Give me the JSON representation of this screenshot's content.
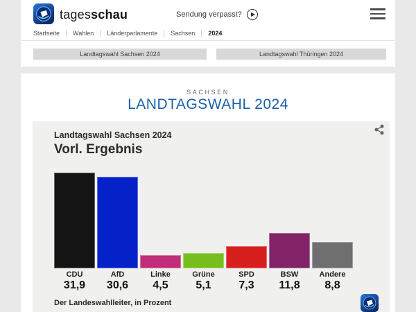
{
  "header": {
    "brand_regular": "tages",
    "brand_bold": "schau",
    "watch_label": "Sendung verpasst?"
  },
  "breadcrumb": {
    "items": [
      "Startseite",
      "Wahlen",
      "Länderparlamente",
      "Sachsen",
      "2024"
    ]
  },
  "tabs": {
    "sachsen": "Landtagswahl Sachsen 2024",
    "thueringen": "Landtagswahl Thüringen 2024"
  },
  "main": {
    "kicker": "SACHSEN",
    "title": "LANDTAGSWAHL 2024"
  },
  "chart_card": {
    "kicker": "Landtagswahl Sachsen 2024",
    "heading": "Vorl. Ergebnis",
    "source": "Der Landeswahlleiter, in Prozent"
  },
  "chart_data": {
    "type": "bar",
    "title": "Landtagswahl Sachsen 2024 — Vorl. Ergebnis",
    "categories": [
      "CDU",
      "AfD",
      "Linke",
      "Grüne",
      "SPD",
      "BSW",
      "Andere"
    ],
    "values": [
      31.9,
      30.6,
      4.5,
      5.1,
      7.3,
      11.8,
      8.8
    ],
    "display_values": [
      "31,9",
      "30,6",
      "4,5",
      "5,1",
      "7,3",
      "11,8",
      "8,8"
    ],
    "colors": [
      "#141414",
      "#0422c8",
      "#bf2e77",
      "#77be1d",
      "#d7201d",
      "#822368",
      "#6f6f71"
    ],
    "ylabel": "Prozent",
    "ylim": [
      0,
      33
    ],
    "grid": false,
    "legend": "none",
    "source": "Der Landeswahlleiter, in Prozent"
  },
  "colors": {
    "page_background": "#e9e9e9",
    "card_background": "#ffffff",
    "panel_background": "#f0f0ef",
    "title_blue": "#1b5fa7",
    "tab_background": "#d8d8d8",
    "logo_blue_dark": "#0a2a6a",
    "logo_blue_light": "#2b72d9"
  },
  "icons": {
    "logo": "tagesschau-globe-icon",
    "play": "play-icon",
    "menu": "hamburger-icon",
    "share": "share-icon"
  }
}
